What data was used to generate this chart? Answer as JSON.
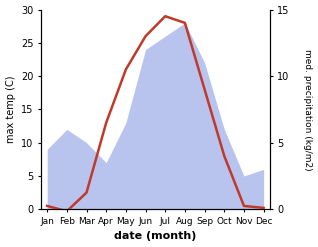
{
  "months": [
    "Jan",
    "Feb",
    "Mar",
    "Apr",
    "May",
    "Jun",
    "Jul",
    "Aug",
    "Sep",
    "Oct",
    "Nov",
    "Dec"
  ],
  "temperature": [
    0.5,
    -0.3,
    2.5,
    13.0,
    21.0,
    26.0,
    29.0,
    28.0,
    18.0,
    8.0,
    0.5,
    0.2
  ],
  "precipitation": [
    4.5,
    6.0,
    5.0,
    3.5,
    6.5,
    12.0,
    13.0,
    14.0,
    11.0,
    6.0,
    2.5,
    3.0
  ],
  "temp_color": "#c0392b",
  "precip_color": "#b8c4ee",
  "temp_ylim": [
    0,
    30
  ],
  "precip_ylim": [
    0,
    15
  ],
  "xlabel": "date (month)",
  "ylabel_left": "max temp (C)",
  "ylabel_right": "med. precipitation (kg/m2)",
  "temp_linewidth": 1.8,
  "bg_color": "#ffffff"
}
